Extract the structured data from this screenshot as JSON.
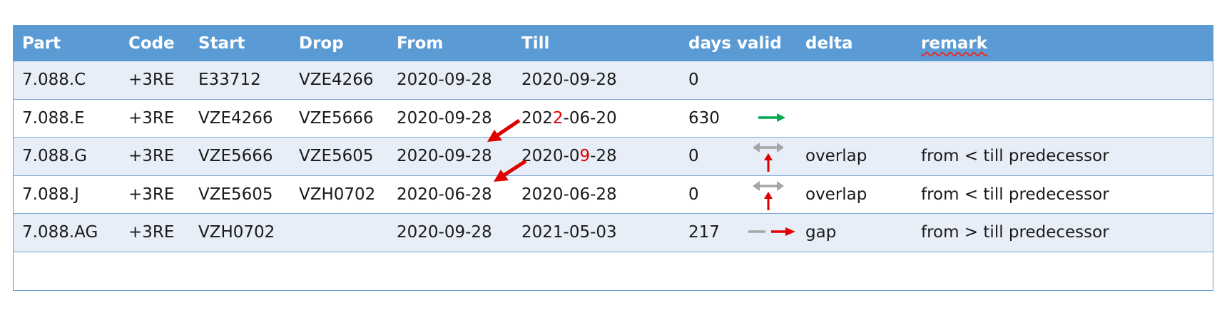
{
  "headers": {
    "part": "Part",
    "code": "Code",
    "start": "Start",
    "drop": "Drop",
    "from": "From",
    "till": "Till",
    "days_valid": "days valid",
    "delta": "delta",
    "remark": "remark"
  },
  "rows": [
    {
      "part": "7.088.C",
      "code": "+3RE",
      "start": "E33712",
      "drop": "VZE4266",
      "from": "2020-09-28",
      "till": "2020-09-28",
      "days": "0",
      "delta": "",
      "remark": ""
    },
    {
      "part": "7.088.E",
      "code": "+3RE",
      "start": "VZE4266",
      "drop": "VZE5666",
      "from": "2020-09-28",
      "till_a": "202",
      "till_hl": "2",
      "till_b": "-06-20",
      "days": "630",
      "delta": "",
      "remark": ""
    },
    {
      "part": "7.088.G",
      "code": "+3RE",
      "start": "VZE5666",
      "drop": "VZE5605",
      "from": "2020-09-28",
      "till_a": "2020-0",
      "till_hl": "9",
      "till_b": "-28",
      "days": "0",
      "delta": "overlap",
      "remark": "from < till predecessor"
    },
    {
      "part": "7.088.J",
      "code": "+3RE",
      "start": "VZE5605",
      "drop": "VZH0702",
      "from": "2020-06-28",
      "till": "2020-06-28",
      "days": "0",
      "delta": "overlap",
      "remark": "from < till predecessor"
    },
    {
      "part": "7.088.AG",
      "code": "+3RE",
      "start": "VZH0702",
      "drop": "",
      "from": "2020-09-28",
      "till": "2021-05-03",
      "days": "217",
      "delta": "gap",
      "remark": "from > till predecessor"
    }
  ],
  "colors": {
    "header_bg": "#5b9bd5",
    "alt_row_bg": "#e8eef8",
    "border": "#5b9bd5",
    "highlight_red": "#e00000",
    "arrow_green": "#00a650",
    "arrow_gray": "#a6a6a6"
  },
  "icons": {
    "row_e": "green-right-arrow-icon",
    "row_g": "gray-double-arrow-with-red-up-arrow-icon",
    "row_j": "gray-double-arrow-with-red-up-arrow-icon",
    "row_ag": "gray-dash-red-right-arrow-icon",
    "annotations": "red-diagonal-arrow-icon"
  }
}
